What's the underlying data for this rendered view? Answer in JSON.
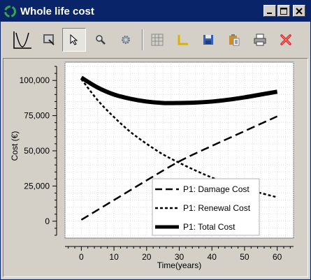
{
  "window": {
    "title": "Whole life cost"
  },
  "toolbar": {
    "buttons": [
      {
        "name": "curve-icon"
      },
      {
        "name": "zoom-window-icon"
      },
      {
        "name": "pointer-icon"
      },
      {
        "name": "magnifier-icon"
      },
      {
        "name": "settings-gear-icon"
      },
      {
        "name": "grid-icon"
      },
      {
        "name": "axes-icon"
      },
      {
        "name": "save-icon"
      },
      {
        "name": "clipboard-icon"
      },
      {
        "name": "print-icon"
      },
      {
        "name": "close-chart-icon"
      }
    ]
  },
  "chart_data": {
    "type": "line",
    "xlabel": "Time(years)",
    "ylabel": "Cost (€)",
    "xlim": [
      -5,
      65
    ],
    "ylim": [
      -12000,
      113000
    ],
    "xticks": [
      0,
      10,
      20,
      30,
      40,
      50,
      60
    ],
    "yticks": [
      0,
      25000,
      50000,
      75000,
      100000
    ],
    "ytick_labels": [
      "0",
      "25,000",
      "50,000",
      "75,000",
      "100,000"
    ],
    "grid": true,
    "legend_position": "bottom-right",
    "series": [
      {
        "name": "P1: Damage Cost",
        "style": "dashed",
        "x": [
          0,
          10,
          20,
          30,
          40,
          50,
          60
        ],
        "y": [
          1000,
          15000,
          29000,
          42500,
          53500,
          64000,
          74500
        ]
      },
      {
        "name": "P1: Renewal Cost",
        "style": "dotted",
        "x": [
          0,
          5,
          10,
          15,
          20,
          25,
          30,
          35,
          40,
          45,
          50,
          55,
          60
        ],
        "y": [
          101000,
          86000,
          74000,
          63500,
          55000,
          47500,
          41500,
          36000,
          31000,
          26500,
          23000,
          20000,
          17000
        ]
      },
      {
        "name": "P1: Total Cost",
        "style": "solid-thick",
        "x": [
          0,
          5,
          10,
          15,
          20,
          25,
          30,
          35,
          40,
          45,
          50,
          55,
          60
        ],
        "y": [
          102000,
          95000,
          90000,
          87000,
          85000,
          84000,
          84000,
          84300,
          85000,
          86300,
          88000,
          90000,
          92000
        ]
      }
    ]
  }
}
